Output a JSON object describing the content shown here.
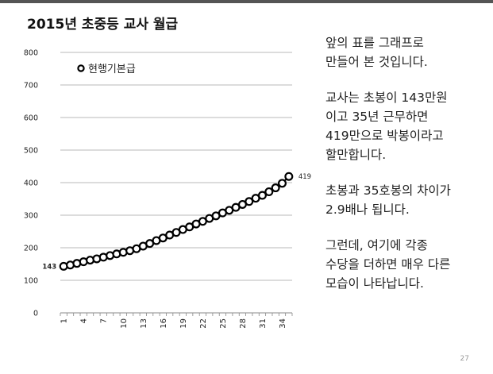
{
  "slide": {
    "title": "2015년 초중등 교사 월급",
    "page_number": "27"
  },
  "notes": [
    "앞의 표를 그래프로\n만들어 본 것입니다.",
    "교사는 초봉이 143만원\n이고 35년 근무하면\n419만으로 박봉이라고\n할만합니다.",
    "초봉과 35호봉의 차이가\n2.9배나 됩니다.",
    "그런데, 여기에 각종\n수당을 더하면 매우 다른\n모습이 나타납니다."
  ],
  "chart_data": {
    "type": "line",
    "title": "",
    "xlabel": "",
    "ylabel": "",
    "ylim": [
      0,
      800
    ],
    "yticks": [
      0,
      100,
      200,
      300,
      400,
      500,
      600,
      700,
      800
    ],
    "xlim": [
      1,
      35
    ],
    "xticks": [
      "1",
      "4",
      "7",
      "10",
      "13",
      "16",
      "19",
      "22",
      "25",
      "28",
      "31",
      "34"
    ],
    "grid": true,
    "legend_position": "top-left",
    "series": [
      {
        "name": "현행기본급",
        "color": "#000000",
        "x": [
          1,
          2,
          3,
          4,
          5,
          6,
          7,
          8,
          9,
          10,
          11,
          12,
          13,
          14,
          15,
          16,
          17,
          18,
          19,
          20,
          21,
          22,
          23,
          24,
          25,
          26,
          27,
          28,
          29,
          30,
          31,
          32,
          33,
          34,
          35
        ],
        "values": [
          143,
          147,
          152,
          157,
          162,
          166,
          171,
          176,
          181,
          186,
          191,
          197,
          205,
          213,
          222,
          230,
          239,
          247,
          256,
          264,
          273,
          281,
          290,
          298,
          307,
          315,
          324,
          333,
          342,
          352,
          361,
          372,
          384,
          398,
          419
        ],
        "start_label": "143",
        "end_label": "419"
      }
    ]
  }
}
